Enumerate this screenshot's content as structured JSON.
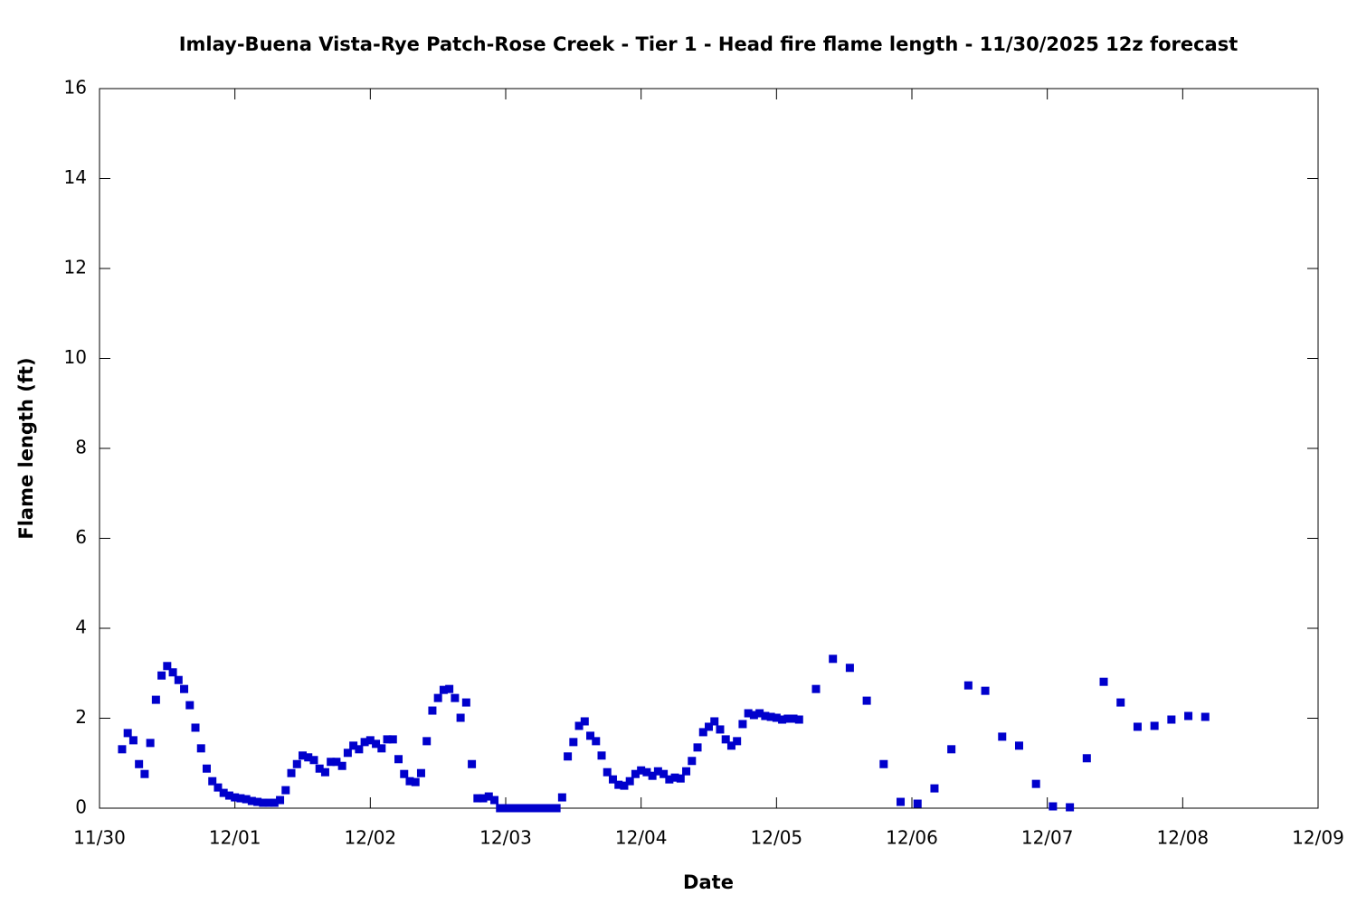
{
  "chart_data": {
    "type": "scatter",
    "title": "Imlay-Buena Vista-Rye Patch-Rose Creek - Tier 1 - Head fire flame length - 11/30/2025 12z forecast",
    "x_label": "Date",
    "y_label": "Flame length (ft)",
    "color": "#0000cc",
    "xlim": [
      0,
      216
    ],
    "ylim": [
      0,
      16
    ],
    "xticks": [
      {
        "value": 0,
        "label": "11/30"
      },
      {
        "value": 24,
        "label": "12/01"
      },
      {
        "value": 48,
        "label": "12/02"
      },
      {
        "value": 72,
        "label": "12/03"
      },
      {
        "value": 96,
        "label": "12/04"
      },
      {
        "value": 120,
        "label": "12/05"
      },
      {
        "value": 144,
        "label": "12/06"
      },
      {
        "value": 168,
        "label": "12/07"
      },
      {
        "value": 192,
        "label": "12/08"
      },
      {
        "value": 216,
        "label": "12/09"
      }
    ],
    "yticks": [
      0,
      2,
      4,
      6,
      8,
      10,
      12,
      14,
      16
    ],
    "x": [
      4,
      5,
      6,
      7,
      8,
      9,
      10,
      11,
      12,
      13,
      14,
      15,
      16,
      17,
      18,
      19,
      20,
      21,
      22,
      23,
      24,
      25,
      26,
      27,
      28,
      29,
      30,
      31,
      32,
      33,
      34,
      35,
      36,
      37,
      38,
      39,
      40,
      41,
      42,
      43,
      44,
      45,
      46,
      47,
      48,
      49,
      50,
      51,
      52,
      53,
      54,
      55,
      56,
      57,
      58,
      59,
      60,
      61,
      62,
      63,
      64,
      65,
      66,
      67,
      68,
      69,
      70,
      71,
      72,
      73,
      74,
      75,
      76,
      77,
      78,
      79,
      80,
      81,
      82,
      83,
      84,
      85,
      86,
      87,
      88,
      89,
      90,
      91,
      92,
      93,
      94,
      95,
      96,
      97,
      98,
      99,
      100,
      101,
      102,
      103,
      104,
      105,
      106,
      107,
      108,
      109,
      110,
      111,
      112,
      113,
      114,
      115,
      116,
      117,
      118,
      119,
      120,
      121,
      122,
      123,
      124,
      127,
      130,
      133,
      136,
      139,
      142,
      145,
      148,
      151,
      154,
      157,
      160,
      163,
      166,
      169,
      172,
      175,
      178,
      181,
      184,
      187,
      190,
      193,
      196
    ],
    "values": [
      1.31,
      1.67,
      1.51,
      0.98,
      0.76,
      1.45,
      2.41,
      2.95,
      3.16,
      3.02,
      2.85,
      2.65,
      2.29,
      1.79,
      1.33,
      0.88,
      0.6,
      0.46,
      0.34,
      0.28,
      0.24,
      0.22,
      0.2,
      0.16,
      0.14,
      0.12,
      0.12,
      0.12,
      0.18,
      0.4,
      0.78,
      0.98,
      1.17,
      1.13,
      1.07,
      0.88,
      0.8,
      1.03,
      1.03,
      0.94,
      1.23,
      1.39,
      1.31,
      1.47,
      1.51,
      1.43,
      1.33,
      1.53,
      1.53,
      1.09,
      0.76,
      0.6,
      0.58,
      0.78,
      1.49,
      2.17,
      2.45,
      2.63,
      2.65,
      2.45,
      2.01,
      2.35,
      0.98,
      0.22,
      0.22,
      0.26,
      0.18,
      0,
      0,
      0,
      0,
      0,
      0,
      0,
      0,
      0,
      0,
      0,
      0.24,
      1.15,
      1.47,
      1.83,
      1.93,
      1.61,
      1.49,
      1.17,
      0.8,
      0.64,
      0.52,
      0.5,
      0.6,
      0.76,
      0.84,
      0.8,
      0.72,
      0.82,
      0.76,
      0.64,
      0.68,
      0.66,
      0.82,
      1.05,
      1.35,
      1.69,
      1.81,
      1.93,
      1.75,
      1.53,
      1.39,
      1.49,
      1.87,
      2.11,
      2.07,
      2.11,
      2.05,
      2.03,
      2.01,
      1.97,
      1.99,
      1.99,
      1.97,
      2.65,
      3.32,
      3.12,
      2.39,
      0.98,
      0.14,
      0.1,
      0.44,
      1.31,
      2.73,
      2.61,
      1.59,
      1.39,
      0.54,
      0.04,
      0.02,
      1.11,
      2.81,
      2.35,
      1.81,
      1.83,
      1.97,
      2.05,
      2.03
    ]
  }
}
